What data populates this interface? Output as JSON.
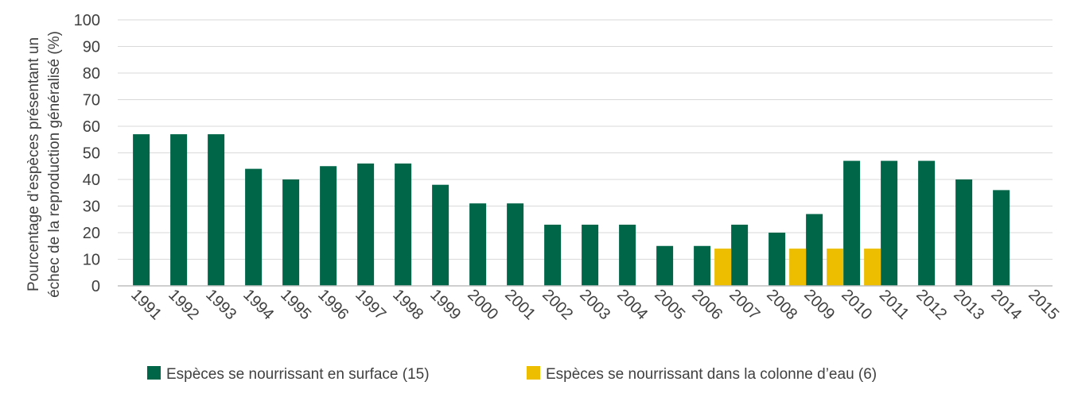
{
  "chart_data": {
    "type": "bar",
    "ylabel_line1": "Pourcentage d’espèces présentant un",
    "ylabel_line2": "échec de la reproduction généralisé (%)",
    "ylim": [
      0,
      100
    ],
    "yticks": [
      0,
      10,
      20,
      30,
      40,
      50,
      60,
      70,
      80,
      90,
      100
    ],
    "categories": [
      "1991",
      "1992",
      "1993",
      "1994",
      "1995",
      "1996",
      "1997",
      "1998",
      "1999",
      "2000",
      "2001",
      "2002",
      "2003",
      "2004",
      "2005",
      "2006",
      "2007",
      "2008",
      "2009",
      "2010",
      "2011",
      "2012",
      "2013",
      "2014",
      "2015"
    ],
    "grid": true,
    "legend_position": "bottom",
    "series": [
      {
        "name": "Espèces se nourrissant en surface (15)",
        "color": "#006648",
        "values": [
          57,
          57,
          57,
          44,
          40,
          45,
          46,
          46,
          38,
          31,
          31,
          23,
          23,
          23,
          15,
          15,
          23,
          20,
          27,
          47,
          47,
          47,
          40,
          36,
          null
        ]
      },
      {
        "name": "Espèces se nourrissant dans la colonne d’eau (6)",
        "color": "#edbd00",
        "values": [
          null,
          null,
          null,
          null,
          null,
          null,
          null,
          null,
          null,
          null,
          null,
          null,
          null,
          null,
          null,
          null,
          14,
          null,
          14,
          14,
          14,
          null,
          null,
          null,
          null
        ]
      }
    ]
  }
}
